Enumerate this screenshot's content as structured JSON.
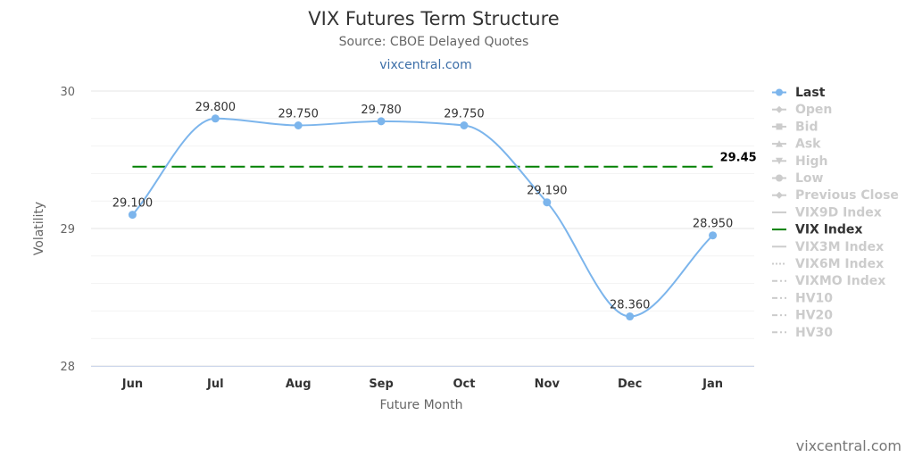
{
  "header": {
    "title": "VIX Futures Term Structure",
    "subtitle": "Source: CBOE Delayed Quotes",
    "link": "vixcentral.com"
  },
  "credit": "vixcentral.com",
  "colors": {
    "series": "#7cb5ec",
    "vix_line": "#008000",
    "grid": "#e6e6e6",
    "legend_active": "#333333",
    "legend_inactive": "#cccccc"
  },
  "chart_data": {
    "type": "line",
    "title": "VIX Futures Term Structure",
    "subtitle": "Source: CBOE Delayed Quotes",
    "xlabel": "Future Month",
    "ylabel": "Volatility",
    "ylim": [
      28,
      30
    ],
    "yticks": [
      "28",
      "29",
      "30"
    ],
    "categories": [
      "Jun",
      "Jul",
      "Aug",
      "Sep",
      "Oct",
      "Nov",
      "Dec",
      "Jan"
    ],
    "series": [
      {
        "name": "Last",
        "values": [
          29.1,
          29.8,
          29.75,
          29.78,
          29.75,
          29.19,
          28.36,
          28.95
        ],
        "labels": [
          "29.100",
          "29.800",
          "29.750",
          "29.780",
          "29.750",
          "29.190",
          "28.360",
          "28.950"
        ]
      }
    ],
    "reference_line": {
      "name": "VIX Index",
      "value": 29.45,
      "label": "29.45",
      "style": "dashed"
    },
    "grid": true,
    "legend_position": "right",
    "legend": [
      {
        "label": "Last",
        "active": true,
        "icon": "line-circle-icon"
      },
      {
        "label": "Open",
        "active": false,
        "icon": "line-diamond-icon"
      },
      {
        "label": "Bid",
        "active": false,
        "icon": "line-square-icon"
      },
      {
        "label": "Ask",
        "active": false,
        "icon": "line-triangle-icon"
      },
      {
        "label": "High",
        "active": false,
        "icon": "line-triangle-down-icon"
      },
      {
        "label": "Low",
        "active": false,
        "icon": "line-circle-icon"
      },
      {
        "label": "Previous Close",
        "active": false,
        "icon": "line-diamond-icon"
      },
      {
        "label": "VIX9D Index",
        "active": false,
        "icon": "solid-line-icon"
      },
      {
        "label": "VIX Index",
        "active": true,
        "icon": "solid-line-icon"
      },
      {
        "label": "VIX3M Index",
        "active": false,
        "icon": "solid-line-icon"
      },
      {
        "label": "VIX6M Index",
        "active": false,
        "icon": "dotted-line-icon"
      },
      {
        "label": "VIXMO Index",
        "active": false,
        "icon": "dash-dot-line-icon"
      },
      {
        "label": "HV10",
        "active": false,
        "icon": "dash-dot-line-icon"
      },
      {
        "label": "HV20",
        "active": false,
        "icon": "dash-dot-line-icon"
      },
      {
        "label": "HV30",
        "active": false,
        "icon": "dash-dot-line-icon"
      }
    ]
  }
}
